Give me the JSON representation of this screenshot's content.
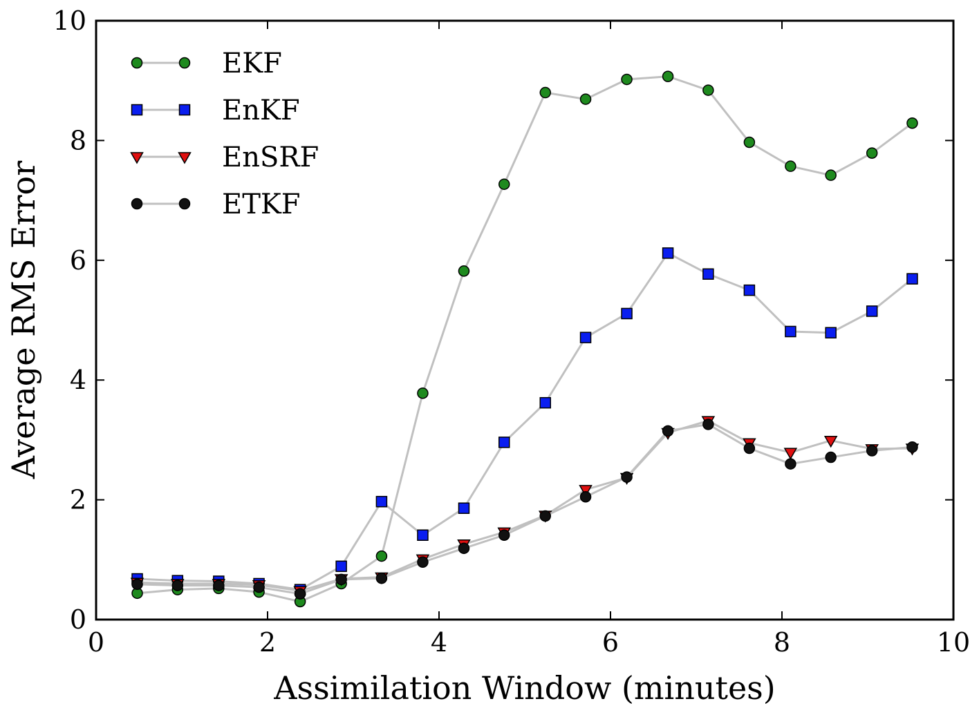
{
  "chart_data": {
    "type": "line",
    "xlabel": "Assimilation Window (minutes)",
    "ylabel": "Average RMS Error",
    "xlim": [
      0,
      10
    ],
    "ylim": [
      0,
      10
    ],
    "xticks": [
      "0",
      "2",
      "4",
      "6",
      "8",
      "10"
    ],
    "yticks": [
      "0",
      "2",
      "4",
      "6",
      "8",
      "10"
    ],
    "grid": false,
    "legend_position": "top-left",
    "line_color": "#c0c0c0",
    "x": [
      0.48,
      0.95,
      1.43,
      1.9,
      2.38,
      2.86,
      3.33,
      3.81,
      4.29,
      4.76,
      5.24,
      5.71,
      6.19,
      6.67,
      7.14,
      7.62,
      8.1,
      8.57,
      9.05,
      9.52
    ],
    "series": [
      {
        "name": "EKF",
        "marker": "circle",
        "color": "#1e8a1e",
        "values": [
          0.44,
          0.5,
          0.52,
          0.46,
          0.3,
          0.6,
          1.06,
          3.78,
          5.82,
          7.27,
          8.8,
          8.69,
          9.02,
          9.07,
          8.84,
          7.97,
          7.57,
          7.42,
          7.79,
          8.29
        ]
      },
      {
        "name": "EnKF",
        "marker": "square",
        "color": "#0a1ef0",
        "values": [
          0.68,
          0.65,
          0.64,
          0.6,
          0.5,
          0.89,
          1.97,
          1.41,
          1.86,
          2.96,
          3.62,
          4.71,
          5.11,
          6.12,
          5.77,
          5.5,
          4.81,
          4.79,
          5.15,
          5.69
        ]
      },
      {
        "name": "EnSRF",
        "marker": "triangle-down",
        "color": "#e01010",
        "values": [
          0.62,
          0.6,
          0.6,
          0.58,
          0.48,
          0.68,
          0.71,
          1.01,
          1.26,
          1.46,
          1.74,
          2.17,
          2.37,
          3.12,
          3.32,
          2.95,
          2.79,
          2.99,
          2.85,
          2.86
        ]
      },
      {
        "name": "ETKF",
        "marker": "circle",
        "color": "#111111",
        "values": [
          0.59,
          0.57,
          0.57,
          0.54,
          0.43,
          0.67,
          0.69,
          0.96,
          1.19,
          1.41,
          1.73,
          2.05,
          2.38,
          3.15,
          3.26,
          2.86,
          2.6,
          2.71,
          2.82,
          2.88
        ]
      }
    ]
  }
}
